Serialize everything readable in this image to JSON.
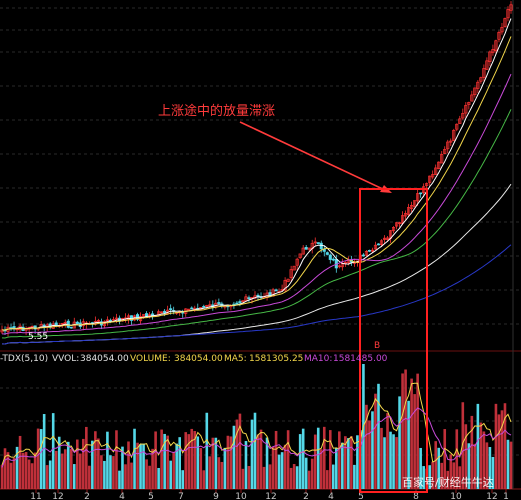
{
  "annotation": {
    "text": "上涨途中的放量滞涨",
    "color": "#ff3b3b"
  },
  "price_label": "5.55",
  "indicator_bar": {
    "name": "-TDX(5,10)",
    "vvol_label": "VVOL:",
    "vvol_value": "384054.00",
    "volume_label": "VOLUME:",
    "volume_value": "384054.00",
    "ma5_label": "MA5:",
    "ma5_value": "1581305.25",
    "ma10_label": "MA10:",
    "ma10_value": "1581485.00"
  },
  "marker_glyph": "B",
  "x_axis_ticks": [
    "11",
    "12",
    "2",
    "4",
    "5",
    "7",
    "9",
    "10",
    "12",
    "2",
    "4",
    "5",
    "8",
    "10",
    "12",
    "1"
  ],
  "watermark": "百家号/财经牛牛达",
  "colors": {
    "up": "#ff3333",
    "down": "#54d8e8",
    "vol_up": "#c0303a",
    "ma5": "#ffffff",
    "ma10": "#f2d64b",
    "ma20": "#c84ad8",
    "ma30": "#46b846",
    "ma60": "#e8e8e8",
    "ma120": "#2838c8"
  }
}
